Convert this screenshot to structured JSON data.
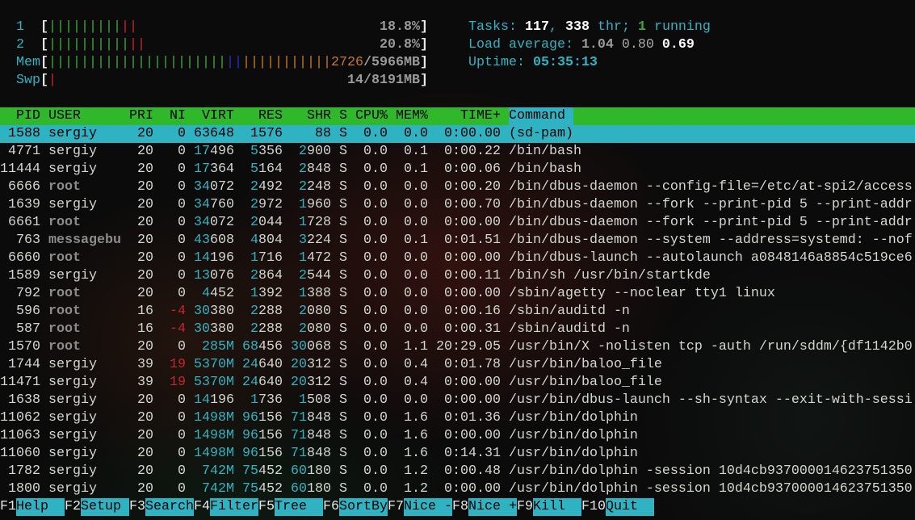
{
  "meters": {
    "cpu1": {
      "label": "1",
      "value": "18.8%",
      "green_bars": 9,
      "red_bars": 2
    },
    "cpu2": {
      "label": "2",
      "value": "20.8%",
      "green_bars": 10,
      "red_bars": 2
    },
    "mem": {
      "label": "Mem",
      "used": "2726",
      "total": "/5966MB",
      "green_bars": 22,
      "blue_bars": 2,
      "orange_bars": 11
    },
    "swp": {
      "label": "Swp",
      "value": "14/8191MB",
      "red_bars": 1
    }
  },
  "summary": {
    "tasks_label": "Tasks: ",
    "tasks": "117",
    "sep1": ", ",
    "threads": "338",
    "thr_label": " thr; ",
    "running": "1",
    "running_label": " running",
    "load_label": "Load average: ",
    "load1": "1.04",
    "load5": "0.80",
    "load15": "0.69",
    "uptime_label": "Uptime: ",
    "uptime": "05:35:13"
  },
  "columns": {
    "pid": "PID",
    "user": "USER",
    "pri": "PRI",
    "ni": "NI",
    "virt": "VIRT",
    "res": "RES",
    "shr": "SHR",
    "s": "S",
    "cpu": "CPU%",
    "mem": "MEM%",
    "time": "TIME+",
    "cmd": "Command"
  },
  "colors": {
    "header_bg": "#2eb82a",
    "selection_bg": "#2fb3c2",
    "accent_cyan": "#2fb3c2",
    "red": "#c8252a"
  },
  "selected_row": 0,
  "processes": [
    {
      "pid": "1588",
      "user": "sergiy",
      "pri": "20",
      "ni": "0",
      "virt": "63648",
      "res": "1576",
      "shr": "88",
      "s": "S",
      "cpu": "0.0",
      "mem": "0.0",
      "time": "0:00.00",
      "cmd": "(sd-pam)"
    },
    {
      "pid": "4771",
      "user": "sergiy",
      "pri": "20",
      "ni": "0",
      "virt": "17496",
      "res": "5356",
      "shr": "2900",
      "s": "S",
      "cpu": "0.0",
      "mem": "0.1",
      "time": "0:00.22",
      "cmd": "/bin/bash"
    },
    {
      "pid": "11444",
      "user": "sergiy",
      "pri": "20",
      "ni": "0",
      "virt": "17364",
      "res": "5164",
      "shr": "2848",
      "s": "S",
      "cpu": "0.0",
      "mem": "0.1",
      "time": "0:00.06",
      "cmd": "/bin/bash"
    },
    {
      "pid": "6666",
      "user": "root",
      "pri": "20",
      "ni": "0",
      "virt": "34072",
      "res": "2492",
      "shr": "2248",
      "s": "S",
      "cpu": "0.0",
      "mem": "0.0",
      "time": "0:00.20",
      "cmd": "/bin/dbus-daemon --config-file=/etc/at-spi2/access"
    },
    {
      "pid": "1639",
      "user": "sergiy",
      "pri": "20",
      "ni": "0",
      "virt": "34760",
      "res": "2972",
      "shr": "1960",
      "s": "S",
      "cpu": "0.0",
      "mem": "0.0",
      "time": "0:00.70",
      "cmd": "/bin/dbus-daemon --fork --print-pid 5 --print-addr"
    },
    {
      "pid": "6661",
      "user": "root",
      "pri": "20",
      "ni": "0",
      "virt": "34072",
      "res": "2044",
      "shr": "1728",
      "s": "S",
      "cpu": "0.0",
      "mem": "0.0",
      "time": "0:00.00",
      "cmd": "/bin/dbus-daemon --fork --print-pid 5 --print-addr"
    },
    {
      "pid": "763",
      "user": "messagebu",
      "pri": "20",
      "ni": "0",
      "virt": "43608",
      "res": "4804",
      "shr": "3224",
      "s": "S",
      "cpu": "0.0",
      "mem": "0.1",
      "time": "0:01.51",
      "cmd": "/bin/dbus-daemon --system --address=systemd: --nof"
    },
    {
      "pid": "6660",
      "user": "root",
      "pri": "20",
      "ni": "0",
      "virt": "14196",
      "res": "1716",
      "shr": "1472",
      "s": "S",
      "cpu": "0.0",
      "mem": "0.0",
      "time": "0:00.00",
      "cmd": "/bin/dbus-launch --autolaunch a0848146a8854c519ce6"
    },
    {
      "pid": "1589",
      "user": "sergiy",
      "pri": "20",
      "ni": "0",
      "virt": "13076",
      "res": "2864",
      "shr": "2544",
      "s": "S",
      "cpu": "0.0",
      "mem": "0.0",
      "time": "0:00.11",
      "cmd": "/bin/sh /usr/bin/startkde"
    },
    {
      "pid": "792",
      "user": "root",
      "pri": "20",
      "ni": "0",
      "virt": "4452",
      "res": "1392",
      "shr": "1388",
      "s": "S",
      "cpu": "0.0",
      "mem": "0.0",
      "time": "0:00.00",
      "cmd": "/sbin/agetty --noclear tty1 linux"
    },
    {
      "pid": "596",
      "user": "root",
      "pri": "16",
      "ni": "-4",
      "virt": "30380",
      "res": "2288",
      "shr": "2080",
      "s": "S",
      "cpu": "0.0",
      "mem": "0.0",
      "time": "0:00.16",
      "cmd": "/sbin/auditd -n"
    },
    {
      "pid": "587",
      "user": "root",
      "pri": "16",
      "ni": "-4",
      "virt": "30380",
      "res": "2288",
      "shr": "2080",
      "s": "S",
      "cpu": "0.0",
      "mem": "0.0",
      "time": "0:00.31",
      "cmd": "/sbin/auditd -n"
    },
    {
      "pid": "1570",
      "user": "root",
      "pri": "20",
      "ni": "0",
      "virt": "285M",
      "res": "68456",
      "shr": "30068",
      "s": "S",
      "cpu": "0.0",
      "mem": "1.1",
      "time": "20:29.05",
      "cmd": "/usr/bin/X -nolisten tcp -auth /run/sddm/{df1142b0"
    },
    {
      "pid": "1744",
      "user": "sergiy",
      "pri": "39",
      "ni": "19",
      "virt": "5370M",
      "res": "24640",
      "shr": "20312",
      "s": "S",
      "cpu": "0.0",
      "mem": "0.4",
      "time": "0:01.78",
      "cmd": "/usr/bin/baloo_file"
    },
    {
      "pid": "11471",
      "user": "sergiy",
      "pri": "39",
      "ni": "19",
      "virt": "5370M",
      "res": "24640",
      "shr": "20312",
      "s": "S",
      "cpu": "0.0",
      "mem": "0.4",
      "time": "0:00.00",
      "cmd": "/usr/bin/baloo_file"
    },
    {
      "pid": "1638",
      "user": "sergiy",
      "pri": "20",
      "ni": "0",
      "virt": "14196",
      "res": "1736",
      "shr": "1508",
      "s": "S",
      "cpu": "0.0",
      "mem": "0.0",
      "time": "0:00.00",
      "cmd": "/usr/bin/dbus-launch --sh-syntax --exit-with-sessi"
    },
    {
      "pid": "11062",
      "user": "sergiy",
      "pri": "20",
      "ni": "0",
      "virt": "1498M",
      "res": "96156",
      "shr": "71848",
      "s": "S",
      "cpu": "0.0",
      "mem": "1.6",
      "time": "0:01.36",
      "cmd": "/usr/bin/dolphin"
    },
    {
      "pid": "11063",
      "user": "sergiy",
      "pri": "20",
      "ni": "0",
      "virt": "1498M",
      "res": "96156",
      "shr": "71848",
      "s": "S",
      "cpu": "0.0",
      "mem": "1.6",
      "time": "0:00.00",
      "cmd": "/usr/bin/dolphin"
    },
    {
      "pid": "11060",
      "user": "sergiy",
      "pri": "20",
      "ni": "0",
      "virt": "1498M",
      "res": "96156",
      "shr": "71848",
      "s": "S",
      "cpu": "0.0",
      "mem": "1.6",
      "time": "0:14.31",
      "cmd": "/usr/bin/dolphin"
    },
    {
      "pid": "1782",
      "user": "sergiy",
      "pri": "20",
      "ni": "0",
      "virt": "742M",
      "res": "75452",
      "shr": "60180",
      "s": "S",
      "cpu": "0.0",
      "mem": "1.2",
      "time": "0:00.48",
      "cmd": "/usr/bin/dolphin -session 10d4cb937000014623751350"
    },
    {
      "pid": "1800",
      "user": "sergiy",
      "pri": "20",
      "ni": "0",
      "virt": "742M",
      "res": "75452",
      "shr": "60180",
      "s": "S",
      "cpu": "0.0",
      "mem": "1.2",
      "time": "0:00.00",
      "cmd": "/usr/bin/dolphin -session 10d4cb937000014623751350"
    }
  ],
  "function_keys": [
    {
      "key": "F1",
      "label": "Help"
    },
    {
      "key": "F2",
      "label": "Setup"
    },
    {
      "key": "F3",
      "label": "Search"
    },
    {
      "key": "F4",
      "label": "Filter"
    },
    {
      "key": "F5",
      "label": "Tree"
    },
    {
      "key": "F6",
      "label": "SortBy"
    },
    {
      "key": "F7",
      "label": "Nice -"
    },
    {
      "key": "F8",
      "label": "Nice +"
    },
    {
      "key": "F9",
      "label": "Kill"
    },
    {
      "key": "F10",
      "label": "Quit"
    }
  ]
}
